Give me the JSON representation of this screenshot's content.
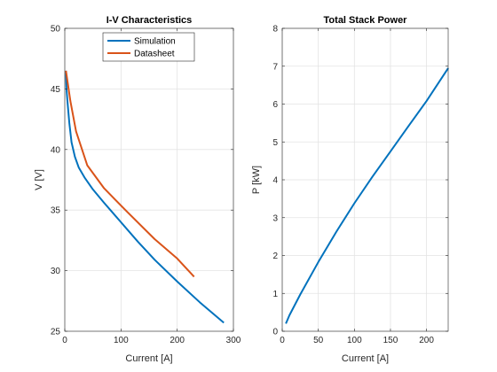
{
  "chart_data": [
    {
      "type": "line",
      "title": "I-V Characteristics",
      "xlabel": "Current [A]",
      "ylabel": "V [V]",
      "xlim": [
        0,
        300
      ],
      "ylim": [
        25,
        50
      ],
      "xticks": [
        0,
        100,
        200,
        300
      ],
      "yticks": [
        25,
        30,
        35,
        40,
        45,
        50
      ],
      "grid": true,
      "legend_position": "top-center",
      "series": [
        {
          "name": "Simulation",
          "color": "#0072BD",
          "x": [
            2,
            3,
            5,
            8,
            12,
            18,
            25,
            35,
            50,
            70,
            100,
            130,
            160,
            200,
            240,
            283
          ],
          "y": [
            46.5,
            45.0,
            43.8,
            42.2,
            40.6,
            39.4,
            38.5,
            37.7,
            36.7,
            35.6,
            34.0,
            32.4,
            30.9,
            29.1,
            27.4,
            25.7
          ]
        },
        {
          "name": "Datasheet",
          "color": "#D95319",
          "x": [
            2,
            10,
            20,
            40,
            70,
            110,
            160,
            200,
            230
          ],
          "y": [
            46.5,
            44.0,
            41.5,
            38.7,
            36.8,
            34.9,
            32.6,
            31.0,
            29.5
          ]
        }
      ]
    },
    {
      "type": "line",
      "title": "Total Stack Power",
      "xlabel": "Current [A]",
      "ylabel": "P [kW]",
      "xlim": [
        0,
        230
      ],
      "ylim": [
        0,
        8
      ],
      "xticks": [
        0,
        50,
        100,
        150,
        200
      ],
      "yticks": [
        0,
        1,
        2,
        3,
        4,
        5,
        6,
        7,
        8
      ],
      "grid": true,
      "series": [
        {
          "color": "#0072BD",
          "x": [
            5,
            10,
            25,
            50,
            75,
            100,
            125,
            150,
            175,
            200,
            230
          ],
          "y": [
            0.2,
            0.42,
            0.97,
            1.83,
            2.63,
            3.38,
            4.08,
            4.75,
            5.42,
            6.08,
            6.95
          ]
        }
      ]
    }
  ]
}
